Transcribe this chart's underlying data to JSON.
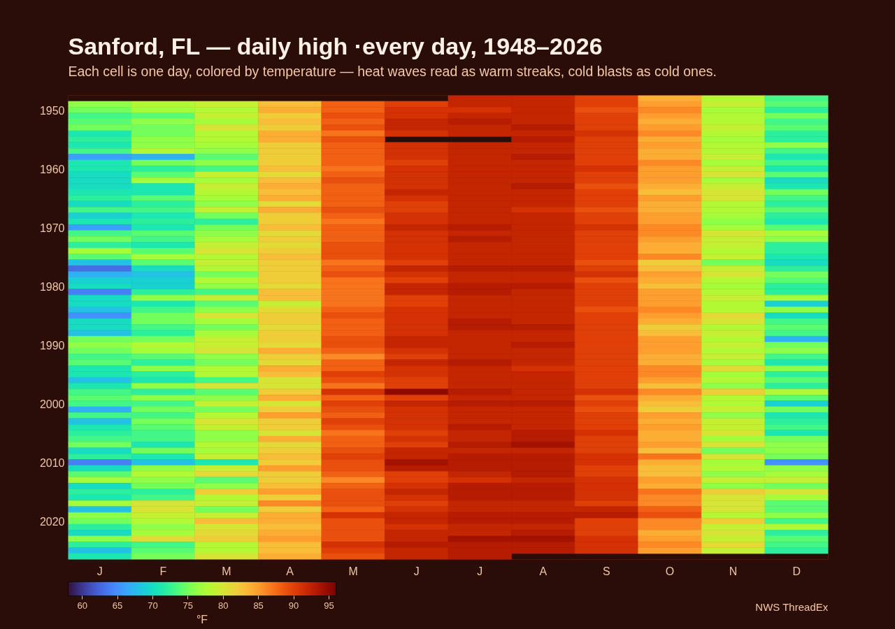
{
  "chart_data": {
    "type": "heatmap",
    "title": "Sanford, FL — daily high ·every day, 1948–2026",
    "subtitle": "Each cell is one day, colored by temperature — heat waves read as warm streaks, cold blasts as cold ones.",
    "clabel": "°F",
    "annotations": [
      "NWS ThreadEx"
    ],
    "categories": [
      "J",
      "F",
      "M",
      "A",
      "M",
      "J",
      "J",
      "A",
      "S",
      "O",
      "N",
      "D"
    ],
    "y_categories": [
      null,
      null,
      "1950",
      null,
      null,
      null,
      null,
      null,
      null,
      null,
      null,
      null,
      "1960",
      null,
      null,
      null,
      null,
      null,
      null,
      null,
      null,
      null,
      "1970",
      null,
      null,
      null,
      null,
      null,
      null,
      null,
      null,
      null,
      "1980",
      null,
      null,
      null,
      null,
      null,
      null,
      null,
      null,
      null,
      "1990",
      null,
      null,
      null,
      null,
      null,
      null,
      null,
      null,
      null,
      "2000",
      null,
      null,
      null,
      null,
      null,
      null,
      null,
      null,
      null,
      "2010",
      null,
      null,
      null,
      null,
      null,
      null,
      null,
      null,
      null,
      "2020",
      null,
      null,
      null,
      null,
      null,
      null
    ],
    "cells": [
      [
        null,
        null,
        null,
        null,
        null,
        null,
        92,
        92,
        90,
        84,
        78,
        73
      ],
      [
        76,
        78,
        79,
        83,
        88,
        90,
        92,
        92,
        90,
        85,
        79,
        74
      ],
      [
        75,
        77,
        78,
        84,
        88,
        91,
        91,
        92,
        89,
        86,
        77,
        72
      ],
      [
        73,
        74,
        79,
        82,
        89,
        91,
        92,
        92,
        90,
        85,
        78,
        75
      ],
      [
        74,
        76,
        77,
        83,
        88,
        92,
        93,
        92,
        90,
        84,
        78,
        73
      ],
      [
        75,
        75,
        80,
        82,
        89,
        92,
        92,
        93,
        90,
        85,
        79,
        74
      ],
      [
        71,
        75,
        78,
        84,
        87,
        91,
        92,
        92,
        91,
        86,
        78,
        72
      ],
      [
        72,
        76,
        78,
        84,
        89,
        null,
        null,
        93,
        90,
        84,
        77,
        72
      ],
      [
        71,
        76,
        77,
        82,
        88,
        91,
        92,
        92,
        90,
        85,
        78,
        76
      ],
      [
        73,
        78,
        76,
        82,
        88,
        91,
        92,
        92,
        90,
        84,
        78,
        73
      ],
      [
        66,
        67,
        74,
        82,
        88,
        91,
        92,
        93,
        90,
        84,
        79,
        71
      ],
      [
        71,
        75,
        76,
        82,
        88,
        90,
        92,
        92,
        90,
        86,
        77,
        73
      ],
      [
        71,
        72,
        73,
        83,
        87,
        91,
        92,
        92,
        91,
        85,
        79,
        71
      ],
      [
        70,
        74,
        79,
        81,
        88,
        91,
        92,
        92,
        90,
        85,
        80,
        74
      ],
      [
        70,
        77,
        77,
        83,
        89,
        91,
        92,
        92,
        90,
        85,
        77,
        70
      ],
      [
        70,
        71,
        79,
        84,
        88,
        91,
        92,
        93,
        89,
        84,
        79,
        71
      ],
      [
        71,
        71,
        78,
        83,
        88,
        92,
        92,
        92,
        90,
        83,
        80,
        75
      ],
      [
        72,
        74,
        77,
        84,
        88,
        91,
        92,
        92,
        90,
        85,
        80,
        73
      ],
      [
        70,
        72,
        76,
        81,
        88,
        90,
        92,
        92,
        90,
        84,
        78,
        72
      ],
      [
        73,
        73,
        79,
        84,
        89,
        90,
        92,
        91,
        89,
        84,
        78,
        74
      ],
      [
        69,
        71,
        75,
        82,
        88,
        91,
        92,
        92,
        90,
        85,
        77,
        72
      ],
      [
        71,
        72,
        72,
        82,
        87,
        91,
        92,
        92,
        90,
        85,
        76,
        71
      ],
      [
        66,
        71,
        75,
        83,
        88,
        92,
        93,
        92,
        91,
        86,
        77,
        74
      ],
      [
        73,
        74,
        76,
        81,
        88,
        91,
        92,
        92,
        90,
        86,
        80,
        77
      ],
      [
        75,
        73,
        77,
        82,
        88,
        91,
        93,
        92,
        90,
        85,
        79,
        76
      ],
      [
        72,
        71,
        79,
        81,
        89,
        91,
        92,
        92,
        90,
        84,
        79,
        72
      ],
      [
        77,
        74,
        80,
        82,
        89,
        91,
        92,
        92,
        90,
        84,
        78,
        72
      ],
      [
        74,
        77,
        78,
        83,
        89,
        91,
        92,
        92,
        90,
        86,
        79,
        71
      ],
      [
        68,
        74,
        79,
        82,
        87,
        90,
        92,
        92,
        89,
        82,
        75,
        70
      ],
      [
        63,
        70,
        78,
        82,
        88,
        92,
        93,
        93,
        90,
        83,
        79,
        72
      ],
      [
        67,
        68,
        75,
        82,
        89,
        91,
        92,
        92,
        91,
        85,
        80,
        75
      ],
      [
        69,
        69,
        78,
        82,
        87,
        90,
        92,
        92,
        89,
        84,
        78,
        74
      ],
      [
        70,
        69,
        76,
        81,
        87,
        92,
        93,
        93,
        90,
        83,
        77,
        72
      ],
      [
        64,
        72,
        73,
        83,
        87,
        92,
        93,
        92,
        90,
        85,
        78,
        72
      ],
      [
        70,
        76,
        79,
        83,
        87,
        90,
        92,
        92,
        90,
        85,
        79,
        77
      ],
      [
        70,
        71,
        74,
        79,
        87,
        90,
        92,
        92,
        90,
        85,
        78,
        69
      ],
      [
        68,
        73,
        76,
        81,
        88,
        91,
        92,
        92,
        89,
        86,
        78,
        76
      ],
      [
        65,
        75,
        80,
        82,
        89,
        91,
        92,
        92,
        90,
        85,
        81,
        70
      ],
      [
        70,
        75,
        77,
        82,
        88,
        91,
        93,
        92,
        90,
        84,
        80,
        73
      ],
      [
        70,
        73,
        75,
        81,
        88,
        91,
        93,
        93,
        90,
        82,
        78,
        74
      ],
      [
        68,
        72,
        77,
        82,
        88,
        91,
        92,
        92,
        90,
        83,
        79,
        73
      ],
      [
        75,
        75,
        79,
        82,
        89,
        92,
        92,
        92,
        90,
        85,
        78,
        67
      ],
      [
        76,
        78,
        79,
        81,
        89,
        92,
        92,
        93,
        90,
        85,
        79,
        75
      ],
      [
        75,
        77,
        80,
        84,
        88,
        91,
        92,
        92,
        90,
        85,
        78,
        76
      ],
      [
        73,
        74,
        76,
        82,
        86,
        90,
        92,
        92,
        90,
        84,
        79,
        73
      ],
      [
        74,
        72,
        75,
        81,
        88,
        92,
        93,
        92,
        90,
        84,
        77,
        71
      ],
      [
        71,
        76,
        78,
        84,
        88,
        91,
        92,
        91,
        90,
        86,
        81,
        76
      ],
      [
        71,
        72,
        78,
        83,
        90,
        91,
        92,
        92,
        90,
        86,
        77,
        72
      ],
      [
        68,
        71,
        73,
        80,
        89,
        90,
        92,
        92,
        90,
        85,
        78,
        74
      ],
      [
        71,
        76,
        80,
        80,
        87,
        90,
        92,
        92,
        90,
        83,
        76,
        72
      ],
      [
        73,
        72,
        74,
        82,
        91,
        95,
        93,
        92,
        91,
        86,
        82,
        78
      ],
      [
        74,
        76,
        76,
        84,
        88,
        90,
        92,
        92,
        89,
        84,
        78,
        74
      ],
      [
        73,
        73,
        79,
        80,
        90,
        92,
        93,
        93,
        90,
        83,
        78,
        69
      ],
      [
        67,
        75,
        75,
        82,
        89,
        91,
        92,
        92,
        89,
        82,
        79,
        75
      ],
      [
        73,
        73,
        78,
        85,
        88,
        91,
        92,
        92,
        90,
        85,
        76,
        71
      ],
      [
        68,
        75,
        80,
        82,
        90,
        91,
        92,
        92,
        90,
        84,
        79,
        72
      ],
      [
        71,
        74,
        79,
        82,
        89,
        91,
        93,
        92,
        90,
        85,
        79,
        73
      ],
      [
        72,
        73,
        76,
        80,
        87,
        90,
        92,
        93,
        91,
        84,
        80,
        71
      ],
      [
        73,
        73,
        76,
        84,
        88,
        91,
        92,
        93,
        90,
        84,
        77,
        75
      ],
      [
        75,
        71,
        78,
        81,
        88,
        90,
        93,
        94,
        90,
        85,
        80,
        76
      ],
      [
        70,
        75,
        77,
        82,
        89,
        92,
        92,
        92,
        90,
        83,
        75,
        76
      ],
      [
        72,
        71,
        79,
        83,
        90,
        92,
        93,
        93,
        91,
        87,
        80,
        75
      ],
      [
        64,
        68,
        71,
        82,
        89,
        94,
        93,
        93,
        91,
        84,
        77,
        65
      ],
      [
        70,
        76,
        79,
        85,
        89,
        93,
        93,
        93,
        90,
        83,
        78,
        76
      ],
      [
        74,
        78,
        81,
        82,
        88,
        90,
        92,
        93,
        90,
        83,
        76,
        77
      ],
      [
        77,
        76,
        74,
        82,
        86,
        90,
        91,
        92,
        91,
        85,
        79,
        79
      ],
      [
        70,
        75,
        76,
        83,
        88,
        91,
        93,
        93,
        91,
        84,
        76,
        75
      ],
      [
        72,
        72,
        82,
        85,
        89,
        92,
        93,
        93,
        91,
        87,
        82,
        80
      ],
      [
        71,
        73,
        78,
        82,
        89,
        91,
        93,
        93,
        91,
        86,
        80,
        77
      ],
      [
        77,
        80,
        79,
        86,
        89,
        90,
        92,
        92,
        90,
        86,
        80,
        74
      ],
      [
        68,
        80,
        75,
        82,
        88,
        91,
        92,
        92,
        92,
        88,
        80,
        74
      ],
      [
        76,
        79,
        79,
        84,
        91,
        92,
        93,
        93,
        93,
        89,
        78,
        76
      ],
      [
        75,
        78,
        83,
        84,
        89,
        92,
        93,
        93,
        90,
        86,
        82,
        73
      ],
      [
        72,
        76,
        80,
        83,
        89,
        91,
        92,
        92,
        90,
        86,
        79,
        78
      ],
      [
        70,
        77,
        81,
        84,
        89,
        92,
        92,
        93,
        90,
        84,
        80,
        72
      ],
      [
        76,
        81,
        82,
        85,
        89,
        92,
        94,
        94,
        91,
        85,
        79,
        74
      ],
      [
        72,
        73,
        78,
        83,
        91,
        93,
        93,
        93,
        91,
        86,
        81,
        73
      ],
      [
        68,
        74,
        78,
        83,
        90,
        92,
        93,
        93,
        91,
        85,
        79,
        72
      ],
      [
        71,
        75,
        80,
        84,
        89,
        92,
        93,
        null,
        null,
        null,
        null,
        null
      ]
    ],
    "clim": [
      58,
      96
    ],
    "cticks": [
      60,
      65,
      70,
      75,
      80,
      85,
      90,
      95
    ]
  }
}
